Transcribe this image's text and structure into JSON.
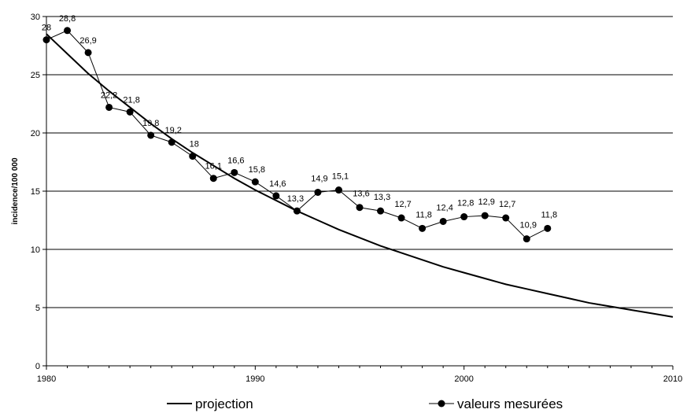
{
  "chart_data": {
    "type": "line",
    "title": "",
    "xlabel": "",
    "ylabel": "incidence/100 000",
    "xlim": [
      1980,
      2010
    ],
    "ylim": [
      0,
      30
    ],
    "x_ticks": [
      "1980",
      "1990",
      "2000",
      "2010"
    ],
    "y_ticks": [
      "0",
      "5",
      "10",
      "15",
      "20",
      "25",
      "30"
    ],
    "grid": "horizontal",
    "legend_position": "bottom",
    "series": [
      {
        "name": "projection",
        "marker": "none",
        "color": "#000000",
        "x": [
          1980,
          1981,
          1982,
          1983,
          1984,
          1985,
          1986,
          1987,
          1988,
          1989,
          1990,
          1991,
          1992,
          1993,
          1994,
          1995,
          1996,
          1997,
          1998,
          1999,
          2000,
          2001,
          2002,
          2003,
          2004,
          2005,
          2006,
          2007,
          2008,
          2009,
          2010
        ],
        "y": [
          28.5,
          26.8,
          25.1,
          23.6,
          22.2,
          20.8,
          19.5,
          18.3,
          17.2,
          16.1,
          15.1,
          14.2,
          13.3,
          12.5,
          11.7,
          11.0,
          10.3,
          9.7,
          9.1,
          8.5,
          8.0,
          7.5,
          7.0,
          6.6,
          6.2,
          5.8,
          5.4,
          5.1,
          4.8,
          4.5,
          4.2
        ]
      },
      {
        "name": "valeurs mesurées",
        "marker": "circle",
        "color": "#000000",
        "x": [
          1980,
          1981,
          1982,
          1983,
          1984,
          1985,
          1986,
          1987,
          1988,
          1989,
          1990,
          1991,
          1992,
          1993,
          1994,
          1995,
          1996,
          1997,
          1998,
          1999,
          2000,
          2001,
          2002,
          2003,
          2004
        ],
        "y": [
          28,
          28.8,
          26.9,
          22.2,
          21.8,
          19.8,
          19.2,
          18,
          16.1,
          16.6,
          15.8,
          14.6,
          13.3,
          14.9,
          15.1,
          13.6,
          13.3,
          12.7,
          11.8,
          12.4,
          12.8,
          12.9,
          12.7,
          10.9,
          11.8
        ],
        "labels": [
          "28",
          "28,8",
          "26,9",
          "22,2",
          "21,8",
          "19,8",
          "19,2",
          "18",
          "16,1",
          "16,6",
          "15,8",
          "14,6",
          "13,3",
          "14,9",
          "15,1",
          "13,6",
          "13,3",
          "12,7",
          "11,8",
          "12,4",
          "12,8",
          "12,9",
          "12,7",
          "10,9",
          "11,8"
        ]
      }
    ]
  }
}
